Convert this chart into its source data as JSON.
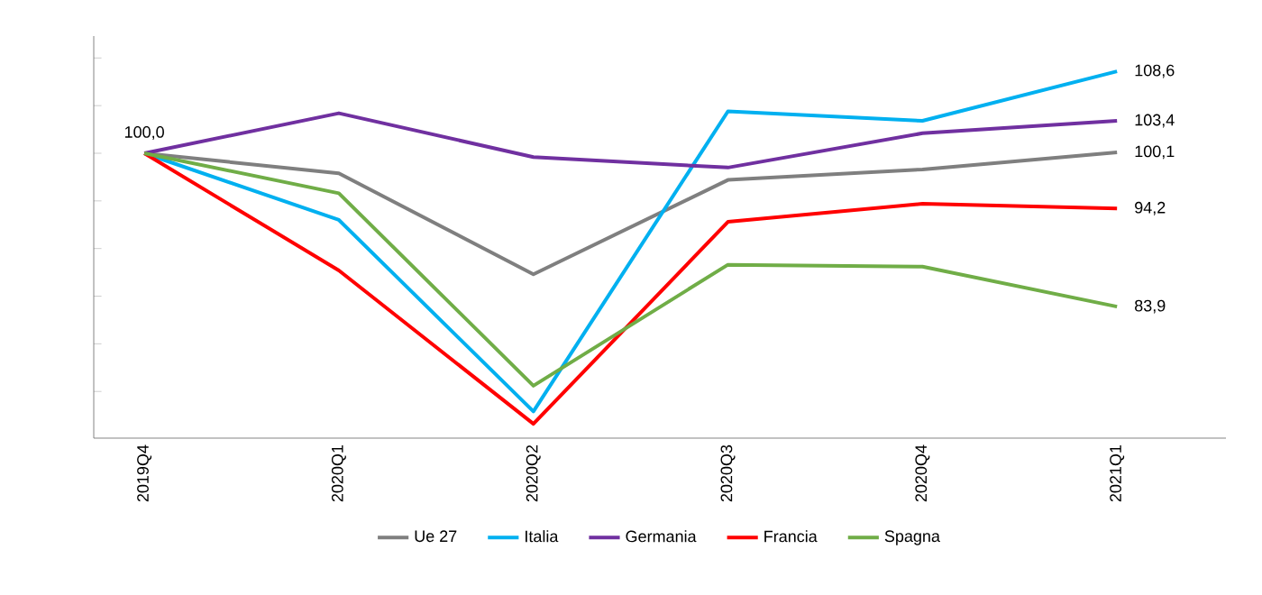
{
  "chart_data": {
    "type": "line",
    "categories": [
      "2019Q4",
      "2020Q1",
      "2020Q2",
      "2020Q3",
      "2020Q4",
      "2021Q1"
    ],
    "series": [
      {
        "name": "Ue 27",
        "color": "#7f7f7f",
        "values": [
          100.0,
          97.9,
          87.3,
          97.2,
          98.3,
          100.1
        ],
        "value_labels": [
          "100,0",
          null,
          null,
          null,
          null,
          "100,1"
        ]
      },
      {
        "name": "Italia",
        "color": "#00b0f0",
        "values": [
          100.0,
          93.0,
          72.9,
          104.4,
          103.4,
          108.6
        ],
        "value_labels": [
          null,
          null,
          null,
          null,
          null,
          "108,6"
        ]
      },
      {
        "name": "Germania",
        "color": "#7030a0",
        "values": [
          100.0,
          104.2,
          99.6,
          98.5,
          102.1,
          103.4
        ],
        "value_labels": [
          null,
          null,
          null,
          null,
          null,
          "103,4"
        ]
      },
      {
        "name": "Francia",
        "color": "#ff0000",
        "values": [
          100.0,
          87.7,
          71.6,
          92.8,
          94.7,
          94.2
        ],
        "value_labels": [
          null,
          null,
          null,
          null,
          null,
          "94,2"
        ]
      },
      {
        "name": "Spagna",
        "color": "#70ad47",
        "values": [
          100.0,
          95.8,
          75.6,
          88.3,
          88.1,
          83.9
        ],
        "value_labels": [
          null,
          null,
          null,
          null,
          null,
          "83,9"
        ]
      }
    ],
    "ylim": [
      70.1,
      112.3
    ],
    "tick_labels": "x",
    "legend": "bottom",
    "marker": "none",
    "line_style": "solid",
    "grid": false
  }
}
